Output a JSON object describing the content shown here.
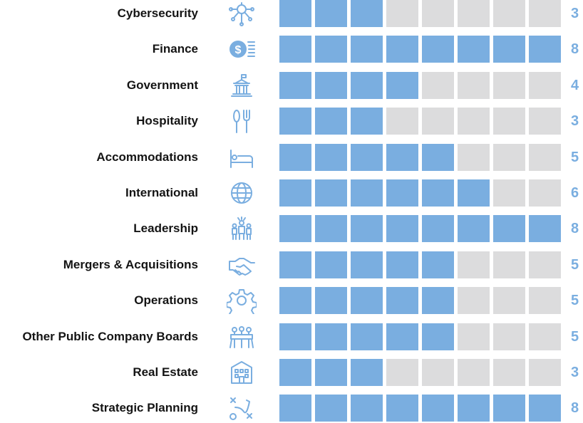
{
  "chart_data": {
    "type": "bar",
    "title": "",
    "xlabel": "",
    "ylabel": "",
    "xlim": [
      0,
      8
    ],
    "grid": false,
    "legend": "none",
    "colors": {
      "filled": "#7aaee0",
      "empty": "#dcdcdd",
      "label": "#141414",
      "value": "#7aaee0",
      "icon": "#7aaee0"
    },
    "categories": [
      "Cybersecurity",
      "Finance",
      "Government",
      "Hospitality",
      "Accommodations",
      "International",
      "Leadership",
      "Mergers & Acquisitions",
      "Operations",
      "Other Public Company Boards",
      "Real Estate",
      "Strategic Planning"
    ],
    "icons": [
      "circuit-brain-icon",
      "money-coins-icon",
      "government-building-icon",
      "spoon-fork-icon",
      "bed-icon",
      "globe-icon",
      "leadership-people-icon",
      "handshake-icon",
      "gear-icon",
      "boardroom-table-icon",
      "real-estate-building-icon",
      "strategy-play-icon"
    ],
    "values": [
      3,
      8,
      4,
      3,
      5,
      6,
      8,
      5,
      5,
      5,
      3,
      8
    ],
    "max_value": 8
  }
}
